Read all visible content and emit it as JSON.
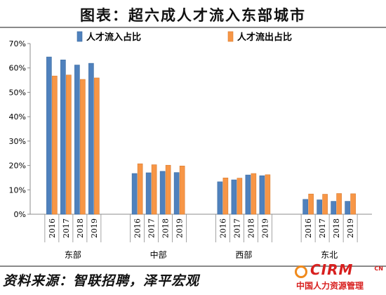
{
  "header": {
    "title": "图表：超六成人才流入东部城市"
  },
  "footer": {
    "source": "资料来源：智联招聘，泽平宏观"
  },
  "watermark": {
    "logo": "CIRM",
    "cn": "CN",
    "sub": "中国人力资源管理"
  },
  "colors": {
    "inflow": "#4f81bd",
    "outflow": "#f79646"
  },
  "chart_data": {
    "type": "bar",
    "title": "",
    "xlabel": "",
    "ylabel": "",
    "ylim": [
      0,
      70
    ],
    "yticks": [
      "0%",
      "10%",
      "20%",
      "30%",
      "40%",
      "50%",
      "60%",
      "70%"
    ],
    "grid": false,
    "legend_position": "top",
    "groups": [
      {
        "name": "东部",
        "years": [
          "2016",
          "2017",
          "2018",
          "2019"
        ]
      },
      {
        "name": "中部",
        "years": [
          "2016",
          "2017",
          "2018",
          "2019"
        ]
      },
      {
        "name": "西部",
        "years": [
          "2016",
          "2017",
          "2018",
          "2019"
        ]
      },
      {
        "name": "东北",
        "years": [
          "2016",
          "2017",
          "2018",
          "2019"
        ]
      }
    ],
    "series": [
      {
        "name": "人才流入占比",
        "values": [
          [
            64.5,
            63.3,
            61.2,
            61.9
          ],
          [
            16.7,
            17.0,
            17.6,
            17.1
          ],
          [
            13.3,
            14.1,
            16.1,
            15.8
          ],
          [
            6.1,
            5.9,
            5.3,
            5.3
          ]
        ]
      },
      {
        "name": "人才流出占比",
        "values": [
          [
            56.7,
            57.1,
            55.3,
            55.9
          ],
          [
            20.7,
            20.3,
            20.1,
            19.8
          ],
          [
            14.9,
            14.8,
            16.7,
            16.2
          ],
          [
            8.3,
            8.2,
            8.5,
            8.4
          ]
        ]
      }
    ]
  }
}
